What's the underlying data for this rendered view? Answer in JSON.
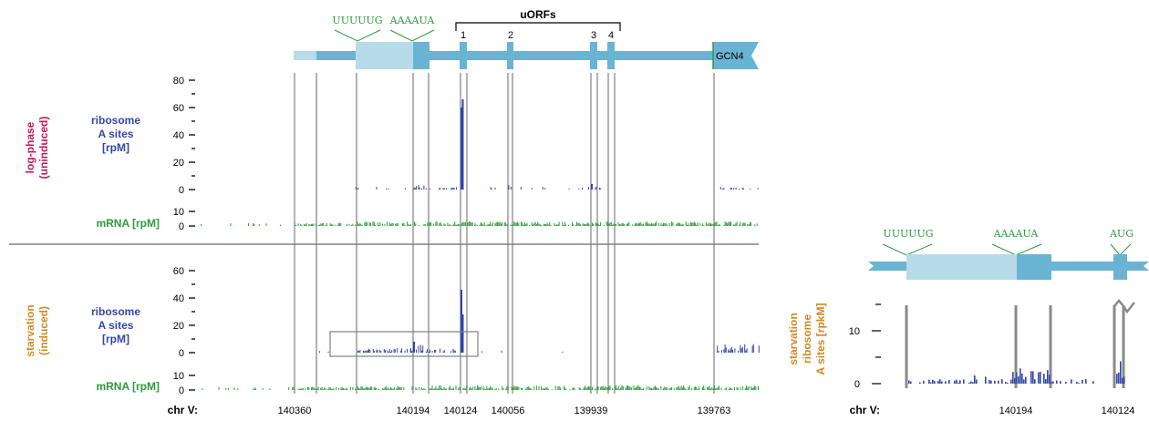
{
  "colors": {
    "gene": "#6ab4d3",
    "gene_light": "#b7dbe8",
    "ribo": "#3346a8",
    "mrna": "#2e9a3e",
    "guide": "#808080",
    "logphase": "#c2185b",
    "starvation": "#cf8a27",
    "motif": "#2e9a3e",
    "text": "#000000"
  },
  "labels": {
    "uorfs_title": "uORFs",
    "uorf_numbers": [
      "1",
      "2",
      "3",
      "4"
    ],
    "motif_left": "UUUUUG",
    "motif_right": "AAAAUA",
    "gene_name": "GCN4",
    "condition_top_line1": "log-phase",
    "condition_top_line2": "(uninduced)",
    "condition_bottom_line1": "starvation",
    "condition_bottom_line2": "(induced)",
    "ribo_line1": "ribosome",
    "ribo_line2": "A sites",
    "ribo_line3": "[rpM]",
    "mrna_label": "mRNA [rpM]",
    "chr_label": "chr V:",
    "inset_motif_1": "UUUUUG",
    "inset_motif_2": "AAAAUA",
    "inset_motif_3": "AUG",
    "inset_ylabel_line1": "starvation",
    "inset_ylabel_line2": "ribosome",
    "inset_ylabel_line3": "A sites [rpkM]",
    "inset_chr_label": "chr V:"
  },
  "chart_data": [
    {
      "type": "bar",
      "panel": "log-phase ribosome A sites",
      "ylabel": "ribosome A sites [rpM]",
      "yticks": [
        0,
        20,
        40,
        60,
        80
      ],
      "ylim": [
        0,
        85
      ],
      "peaks": [
        {
          "x": 140124,
          "y": 60
        },
        {
          "x": 140122,
          "y": 66
        },
        {
          "x": 139939,
          "y": 4
        }
      ]
    },
    {
      "type": "bar",
      "panel": "log-phase mRNA",
      "ylabel": "mRNA [rpM]",
      "yticks": [
        0,
        10
      ],
      "ylim": [
        0,
        12
      ]
    },
    {
      "type": "bar",
      "panel": "starvation ribosome A sites",
      "ylabel": "ribosome A sites [rpM]",
      "yticks": [
        0,
        20,
        40,
        60
      ],
      "ylim": [
        0,
        65
      ],
      "peaks": [
        {
          "x": 140124,
          "y": 46
        },
        {
          "x": 140122,
          "y": 28
        },
        {
          "x": 140194,
          "y": 8
        }
      ]
    },
    {
      "type": "bar",
      "panel": "starvation mRNA",
      "ylabel": "mRNA [rpM]",
      "yticks": [
        0,
        10
      ],
      "ylim": [
        0,
        12
      ]
    },
    {
      "type": "bar",
      "panel": "inset: starvation ribosome A sites",
      "ylabel": "starvation ribosome A sites [rpkM]",
      "yticks": [
        0,
        10
      ],
      "ylim": [
        0,
        17
      ],
      "xticks": [
        "140194",
        "140124"
      ]
    }
  ],
  "x_axis": {
    "tick_labels": [
      "140360",
      "140194",
      "140124",
      "140056",
      "139939",
      "139763"
    ]
  }
}
